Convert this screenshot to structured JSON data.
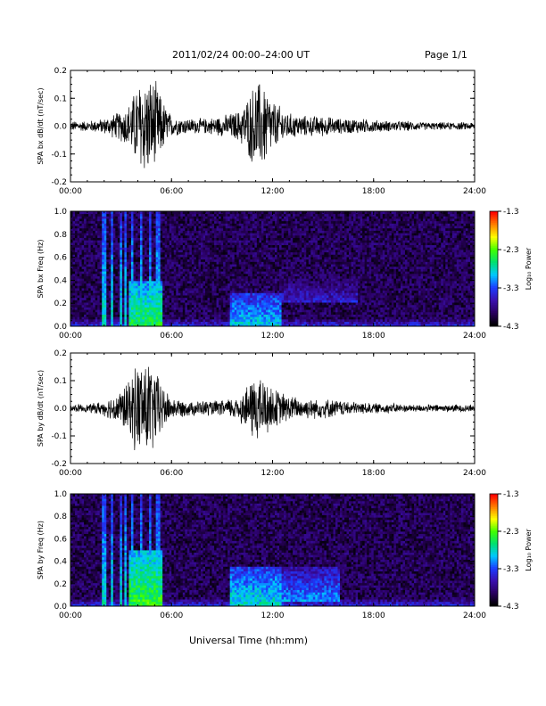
{
  "header": {
    "title": "2011/02/24  00:00–24:00 UT",
    "page_label": "Page 1/1"
  },
  "footer": {
    "xlabel": "Universal Time (hh:mm)"
  },
  "colorbar": {
    "label": "Log₁₀ Power",
    "ticks": [
      "-1.3",
      "-2.3",
      "-3.3",
      "-4.3"
    ],
    "range": [
      -4.3,
      -1.3
    ]
  },
  "colors": {
    "waveform": "#000000",
    "spectrogram_background": "#1a0033",
    "colormap": [
      "#000000",
      "#2a0060",
      "#3a10b0",
      "#1b3cff",
      "#00c8ff",
      "#00e070",
      "#40ff00",
      "#ffff00",
      "#ff8000",
      "#ff0000"
    ]
  },
  "chart_data": [
    {
      "type": "line",
      "title": "",
      "ylabel": "SPA bx dB/dt (nT/sec)",
      "xlabel": "",
      "xlim": [
        "00:00",
        "24:00"
      ],
      "x_ticks": [
        "00:00",
        "06:00",
        "12:00",
        "18:00",
        "24:00"
      ],
      "ylim": [
        -0.2,
        0.2
      ],
      "y_ticks": [
        "0.2",
        "0.1",
        "0.0",
        "-0.1",
        "-0.2"
      ],
      "series": [
        {
          "x": [
            "00:00",
            "01:00",
            "02:00",
            "03:00",
            "03:30",
            "04:00",
            "04:30",
            "05:00",
            "05:30",
            "06:00",
            "07:00",
            "08:00",
            "09:00",
            "10:00",
            "10:30",
            "11:00",
            "11:30",
            "12:00",
            "13:00",
            "14:00",
            "15:00",
            "16:00",
            "17:00",
            "18:00",
            "19:00",
            "20:00",
            "21:00",
            "22:00",
            "23:00",
            "24:00"
          ],
          "amplitude_envelope": [
            0.02,
            0.02,
            0.03,
            0.06,
            0.09,
            0.17,
            0.2,
            0.18,
            0.1,
            0.04,
            0.03,
            0.03,
            0.04,
            0.06,
            0.11,
            0.18,
            0.17,
            0.1,
            0.05,
            0.04,
            0.04,
            0.03,
            0.03,
            0.025,
            0.02,
            0.02,
            0.015,
            0.015,
            0.015,
            0.015
          ]
        }
      ]
    },
    {
      "type": "heatmap",
      "title": "",
      "ylabel": "SPA bx Freq (Hz)",
      "xlabel": "",
      "xlim": [
        "00:00",
        "24:00"
      ],
      "x_ticks": [
        "00:00",
        "06:00",
        "12:00",
        "18:00",
        "24:00"
      ],
      "ylim": [
        0.0,
        1.0
      ],
      "y_ticks": [
        "1.0",
        "0.8",
        "0.6",
        "0.4",
        "0.2",
        "0.0"
      ],
      "zlabel": "Log₁₀ Power",
      "zlim": [
        -4.3,
        -1.3
      ],
      "background_log_power": -4.0,
      "broadband_bursts_hours": [
        2.0,
        2.5,
        3.0,
        3.3,
        3.7,
        4.2,
        4.7,
        5.2
      ],
      "enhancements": [
        {
          "time_range_hours": [
            3.5,
            5.5
          ],
          "freq_range_hz": [
            0.0,
            0.4
          ],
          "log_power": -2.5
        },
        {
          "time_range_hours": [
            9.5,
            12.5
          ],
          "freq_range_hz": [
            0.0,
            0.3
          ],
          "log_power": -2.9
        },
        {
          "time_range_hours": [
            12.5,
            17.0
          ],
          "freq_range_hz": [
            0.2,
            0.45
          ],
          "log_power": -3.5
        }
      ]
    },
    {
      "type": "line",
      "title": "",
      "ylabel": "SPA by dB/dt (nT/sec)",
      "xlabel": "",
      "xlim": [
        "00:00",
        "24:00"
      ],
      "x_ticks": [
        "00:00",
        "06:00",
        "12:00",
        "18:00",
        "24:00"
      ],
      "ylim": [
        -0.2,
        0.2
      ],
      "y_ticks": [
        "0.2",
        "0.1",
        "0.0",
        "-0.1",
        "-0.2"
      ],
      "series": [
        {
          "x": [
            "00:00",
            "01:00",
            "02:00",
            "03:00",
            "03:30",
            "04:00",
            "04:30",
            "05:00",
            "05:30",
            "06:00",
            "07:00",
            "08:00",
            "09:00",
            "10:00",
            "10:30",
            "11:00",
            "11:30",
            "12:00",
            "13:00",
            "14:00",
            "15:00",
            "16:00",
            "17:00",
            "18:00",
            "19:00",
            "20:00",
            "21:00",
            "22:00",
            "23:00",
            "24:00"
          ],
          "amplitude_envelope": [
            0.015,
            0.015,
            0.03,
            0.07,
            0.11,
            0.19,
            0.2,
            0.16,
            0.09,
            0.04,
            0.03,
            0.03,
            0.03,
            0.05,
            0.09,
            0.14,
            0.12,
            0.08,
            0.05,
            0.04,
            0.04,
            0.03,
            0.025,
            0.02,
            0.02,
            0.015,
            0.015,
            0.015,
            0.015,
            0.015
          ]
        }
      ]
    },
    {
      "type": "heatmap",
      "title": "",
      "ylabel": "SPA by Freq (Hz)",
      "xlabel": "",
      "xlim": [
        "00:00",
        "24:00"
      ],
      "x_ticks": [
        "00:00",
        "06:00",
        "12:00",
        "18:00",
        "24:00"
      ],
      "ylim": [
        0.0,
        1.0
      ],
      "y_ticks": [
        "1.0",
        "0.8",
        "0.6",
        "0.4",
        "0.2",
        "0.0"
      ],
      "zlabel": "Log₁₀ Power",
      "zlim": [
        -4.3,
        -1.3
      ],
      "background_log_power": -4.0,
      "broadband_bursts_hours": [
        2.0,
        2.5,
        3.0,
        3.3,
        3.7,
        4.2,
        4.7,
        5.2
      ],
      "enhancements": [
        {
          "time_range_hours": [
            3.5,
            5.5
          ],
          "freq_range_hz": [
            0.0,
            0.5
          ],
          "log_power": -2.4
        },
        {
          "time_range_hours": [
            9.5,
            12.5
          ],
          "freq_range_hz": [
            0.0,
            0.35
          ],
          "log_power": -2.8
        },
        {
          "time_range_hours": [
            12.5,
            16.0
          ],
          "freq_range_hz": [
            0.05,
            0.35
          ],
          "log_power": -3.1
        }
      ]
    }
  ]
}
